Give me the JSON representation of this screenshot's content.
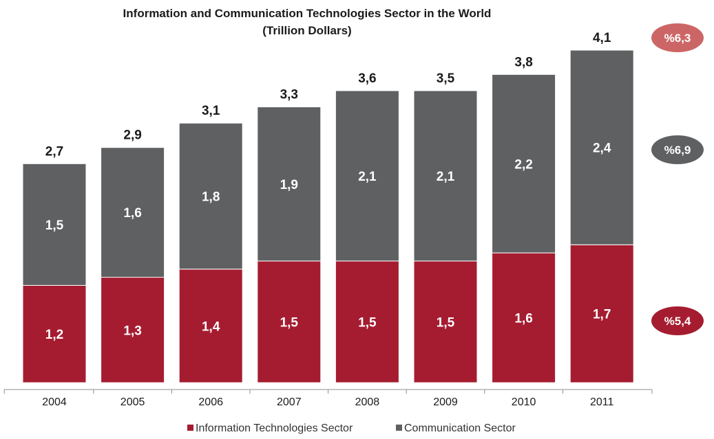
{
  "chart_data": {
    "type": "bar",
    "stacked": true,
    "title": "Information and Communication Technologies Sector in the World",
    "subtitle": "(Trillion Dollars)",
    "categories": [
      "2004",
      "2005",
      "2006",
      "2007",
      "2008",
      "2009",
      "2010",
      "2011"
    ],
    "series": [
      {
        "name": "Information Technologies Sector",
        "color": "#a51c30",
        "values": [
          1.2,
          1.3,
          1.4,
          1.5,
          1.5,
          1.5,
          1.6,
          1.7
        ],
        "labels": [
          "1,2",
          "1,3",
          "1,4",
          "1,5",
          "1,5",
          "1,5",
          "1,6",
          "1,7"
        ]
      },
      {
        "name": "Communication Sector",
        "color": "#5f6062",
        "values": [
          1.5,
          1.6,
          1.8,
          1.9,
          2.1,
          2.1,
          2.2,
          2.4
        ],
        "labels": [
          "1,5",
          "1,6",
          "1,8",
          "1,9",
          "2,1",
          "2,1",
          "2,2",
          "2,4"
        ]
      }
    ],
    "totals": [
      2.7,
      2.9,
      3.1,
      3.3,
      3.6,
      3.5,
      3.8,
      4.1
    ],
    "total_labels": [
      "2,7",
      "2,9",
      "3,1",
      "3,3",
      "3,6",
      "3,5",
      "3,8",
      "4,1"
    ],
    "ylim": [
      0,
      4.1
    ],
    "grid": false,
    "legend_position": "bottom",
    "growth_badges": [
      {
        "label": "%6,3",
        "color": "#cc6666"
      },
      {
        "label": "%6,9",
        "color": "#5f6062"
      },
      {
        "label": "%5,4",
        "color": "#a51c30"
      }
    ]
  }
}
